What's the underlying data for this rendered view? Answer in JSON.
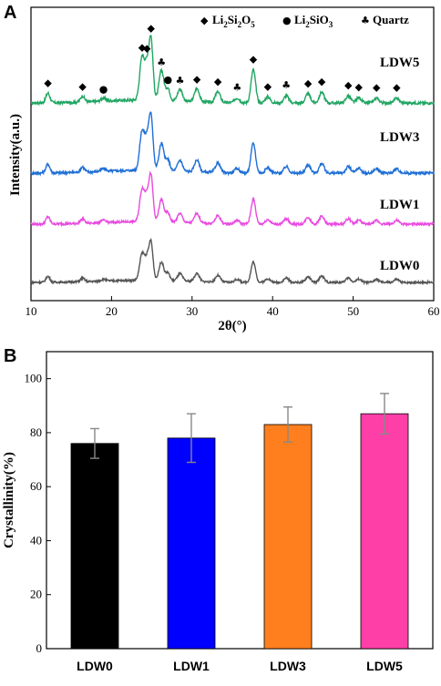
{
  "chart_data": [
    {
      "panel": "A",
      "type": "line",
      "xlabel": "2θ(°)",
      "ylabel": "Intensity(a.u.)",
      "xlim": [
        10,
        60
      ],
      "xticks": [
        10,
        20,
        30,
        40,
        50,
        60
      ],
      "legend": {
        "position": "top-right",
        "entries": [
          {
            "symbol": "◆",
            "label": "Li2Si2O5",
            "parts": [
              "Li",
              "2",
              "Si",
              "2",
              "O",
              "5"
            ]
          },
          {
            "symbol": "●",
            "label": "Li2SiO3",
            "parts": [
              "Li",
              "2",
              "SiO",
              "3"
            ]
          },
          {
            "symbol": "♣",
            "label": "Quartz",
            "parts": [
              "Quartz"
            ]
          }
        ]
      },
      "series": [
        {
          "name": "LDW5",
          "color": "#21a663"
        },
        {
          "name": "LDW3",
          "color": "#1f6fd6"
        },
        {
          "name": "LDW1",
          "color": "#e84be0"
        },
        {
          "name": "LDW0",
          "color": "#555555"
        }
      ],
      "peaks": [
        {
          "x": 12.1,
          "h": 0.16,
          "w": 0.25
        },
        {
          "x": 16.4,
          "h": 0.1,
          "w": 0.25
        },
        {
          "x": 19.0,
          "h": 0.05,
          "w": 0.3
        },
        {
          "x": 23.8,
          "h": 0.72,
          "w": 0.3
        },
        {
          "x": 24.4,
          "h": 0.5,
          "w": 0.25
        },
        {
          "x": 24.9,
          "h": 1.0,
          "w": 0.25
        },
        {
          "x": 26.2,
          "h": 0.5,
          "w": 0.3
        },
        {
          "x": 27.0,
          "h": 0.2,
          "w": 0.25
        },
        {
          "x": 28.5,
          "h": 0.2,
          "w": 0.3
        },
        {
          "x": 30.6,
          "h": 0.22,
          "w": 0.3
        },
        {
          "x": 33.2,
          "h": 0.18,
          "w": 0.3
        },
        {
          "x": 35.6,
          "h": 0.08,
          "w": 0.3
        },
        {
          "x": 37.6,
          "h": 0.55,
          "w": 0.28
        },
        {
          "x": 39.4,
          "h": 0.1,
          "w": 0.3
        },
        {
          "x": 41.7,
          "h": 0.12,
          "w": 0.3
        },
        {
          "x": 44.4,
          "h": 0.15,
          "w": 0.3
        },
        {
          "x": 46.1,
          "h": 0.18,
          "w": 0.3
        },
        {
          "x": 49.4,
          "h": 0.12,
          "w": 0.3
        },
        {
          "x": 50.7,
          "h": 0.09,
          "w": 0.3
        },
        {
          "x": 52.9,
          "h": 0.08,
          "w": 0.3
        },
        {
          "x": 55.4,
          "h": 0.08,
          "w": 0.3
        }
      ],
      "markers": [
        {
          "x": 12.1,
          "symbol": "◆"
        },
        {
          "x": 16.4,
          "symbol": "◆"
        },
        {
          "x": 19.0,
          "symbol": "●"
        },
        {
          "x": 23.8,
          "symbol": "◆"
        },
        {
          "x": 24.4,
          "symbol": "◆"
        },
        {
          "x": 24.9,
          "symbol": "◆"
        },
        {
          "x": 26.2,
          "symbol": "♣"
        },
        {
          "x": 27.0,
          "symbol": "●"
        },
        {
          "x": 28.5,
          "symbol": "♣"
        },
        {
          "x": 30.6,
          "symbol": "◆"
        },
        {
          "x": 33.2,
          "symbol": "◆"
        },
        {
          "x": 35.6,
          "symbol": "♣"
        },
        {
          "x": 37.6,
          "symbol": "◆"
        },
        {
          "x": 39.4,
          "symbol": "◆"
        },
        {
          "x": 41.7,
          "symbol": "♣"
        },
        {
          "x": 44.4,
          "symbol": "◆"
        },
        {
          "x": 46.1,
          "symbol": "◆"
        },
        {
          "x": 49.4,
          "symbol": "◆"
        },
        {
          "x": 50.7,
          "symbol": "◆"
        },
        {
          "x": 52.9,
          "symbol": "◆"
        },
        {
          "x": 55.4,
          "symbol": "◆"
        }
      ]
    },
    {
      "panel": "B",
      "type": "bar",
      "ylabel": "Crystallinity(%)",
      "ylim": [
        0,
        110
      ],
      "yticks": [
        0,
        20,
        40,
        60,
        80,
        100
      ],
      "categories": [
        "LDW0",
        "LDW1",
        "LDW3",
        "LDW5"
      ],
      "values": [
        76,
        78,
        83,
        87
      ],
      "errors": [
        5.5,
        9,
        6.5,
        7.5
      ],
      "colors": [
        "#000000",
        "#0000ff",
        "#ff7f1e",
        "#ff3fa8"
      ]
    }
  ]
}
